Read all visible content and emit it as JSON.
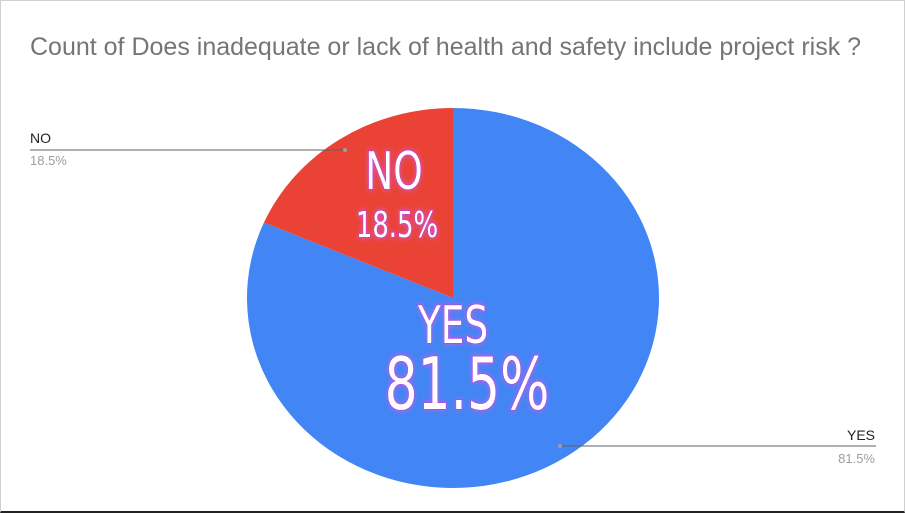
{
  "title": "Count of Does inadequate or lack of health and safety include project risk ?",
  "chart_data": {
    "type": "pie",
    "title": "Count of Does inadequate or lack of health and safety include project risk ?",
    "slices": [
      {
        "label": "YES",
        "value": 81.5,
        "percent_label": "81.5%",
        "color": "#4285f4"
      },
      {
        "label": "NO",
        "value": 18.5,
        "percent_label": "18.5%",
        "color": "#ea4335"
      }
    ],
    "legend": "leader-line labels outside slices",
    "overlay_labels": [
      {
        "name": "NO",
        "percent": "18.5%"
      },
      {
        "name": "YES",
        "percent": "81.5%"
      }
    ]
  }
}
